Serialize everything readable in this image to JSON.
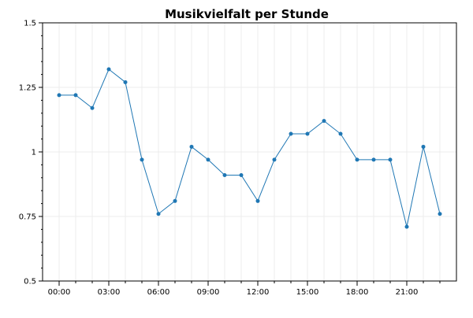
{
  "chart_data": {
    "type": "line",
    "title": "Musikvielfalt per Stunde",
    "xlabel": "",
    "ylabel": "",
    "x": [
      0,
      1,
      2,
      3,
      4,
      5,
      6,
      7,
      8,
      9,
      10,
      11,
      12,
      13,
      14,
      15,
      16,
      17,
      18,
      19,
      20,
      21,
      22,
      23
    ],
    "x_tick_values": [
      0,
      3,
      6,
      9,
      12,
      15,
      18,
      21
    ],
    "x_tick_labels": [
      "00:00",
      "03:00",
      "06:00",
      "09:00",
      "12:00",
      "15:00",
      "18:00",
      "21:00"
    ],
    "xlim": [
      -1,
      24
    ],
    "ylim": [
      0.5,
      1.5
    ],
    "y_tick_values": [
      0.5,
      0.75,
      1,
      1.25,
      1.5
    ],
    "y_tick_labels": [
      "0.5",
      "0.75",
      "1",
      "1.25",
      "1.5"
    ],
    "grid": true,
    "series": [
      {
        "color": "#1f77b4",
        "values": [
          1.22,
          1.22,
          1.17,
          1.32,
          1.27,
          0.97,
          0.76,
          0.81,
          1.02,
          0.97,
          0.91,
          0.91,
          0.81,
          0.97,
          1.07,
          1.07,
          1.12,
          1.07,
          0.97,
          0.97,
          0.97,
          0.71,
          1.02,
          0.76
        ]
      }
    ]
  }
}
